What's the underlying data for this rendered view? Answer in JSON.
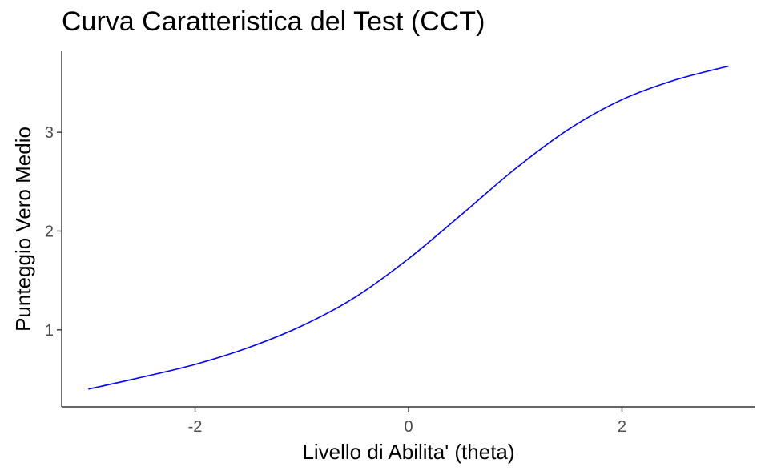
{
  "chart_data": {
    "type": "line",
    "title": "Curva Caratteristica del Test (CCT)",
    "xlabel": "Livello di Abilita' (theta)",
    "ylabel": "Punteggio Vero Medio",
    "xlim": [
      -3.25,
      3.25
    ],
    "ylim": [
      0.22,
      3.82
    ],
    "xticks": [
      -2,
      0,
      2
    ],
    "yticks": [
      1,
      2,
      3
    ],
    "grid": false,
    "series": [
      {
        "color": "#0000ff",
        "x": [
          -3.0,
          -2.5,
          -2.0,
          -1.5,
          -1.0,
          -0.5,
          0.0,
          0.5,
          1.0,
          1.5,
          2.0,
          2.5,
          3.0
        ],
        "y": [
          0.4,
          0.52,
          0.65,
          0.82,
          1.04,
          1.33,
          1.72,
          2.17,
          2.63,
          3.03,
          3.33,
          3.53,
          3.67
        ]
      }
    ]
  }
}
